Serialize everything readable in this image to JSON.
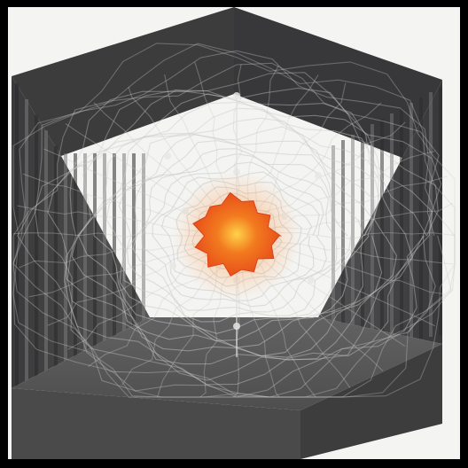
{
  "image": {
    "frame_color": "#000000",
    "background_color": "#f4f4f2",
    "cube_face_colors": {
      "back_left": "#3c3c3d",
      "back_right": "#3a3a3b",
      "inner_left": "#4c4c4d",
      "inner_right": "#49494a",
      "floor_top": "#5a5a5b",
      "floor_front_left": "#4a4a4b",
      "floor_front_right": "#3d3d3e",
      "stripe_light": "#7a7a7b",
      "stripe_dark": "#2a2a2b"
    },
    "web_color": "#c9c9c7",
    "core_colors": {
      "outer": "#e8501a",
      "middle": "#f27a1f",
      "inner": "#ffd24a"
    },
    "node_color": "#e6e6e4"
  }
}
